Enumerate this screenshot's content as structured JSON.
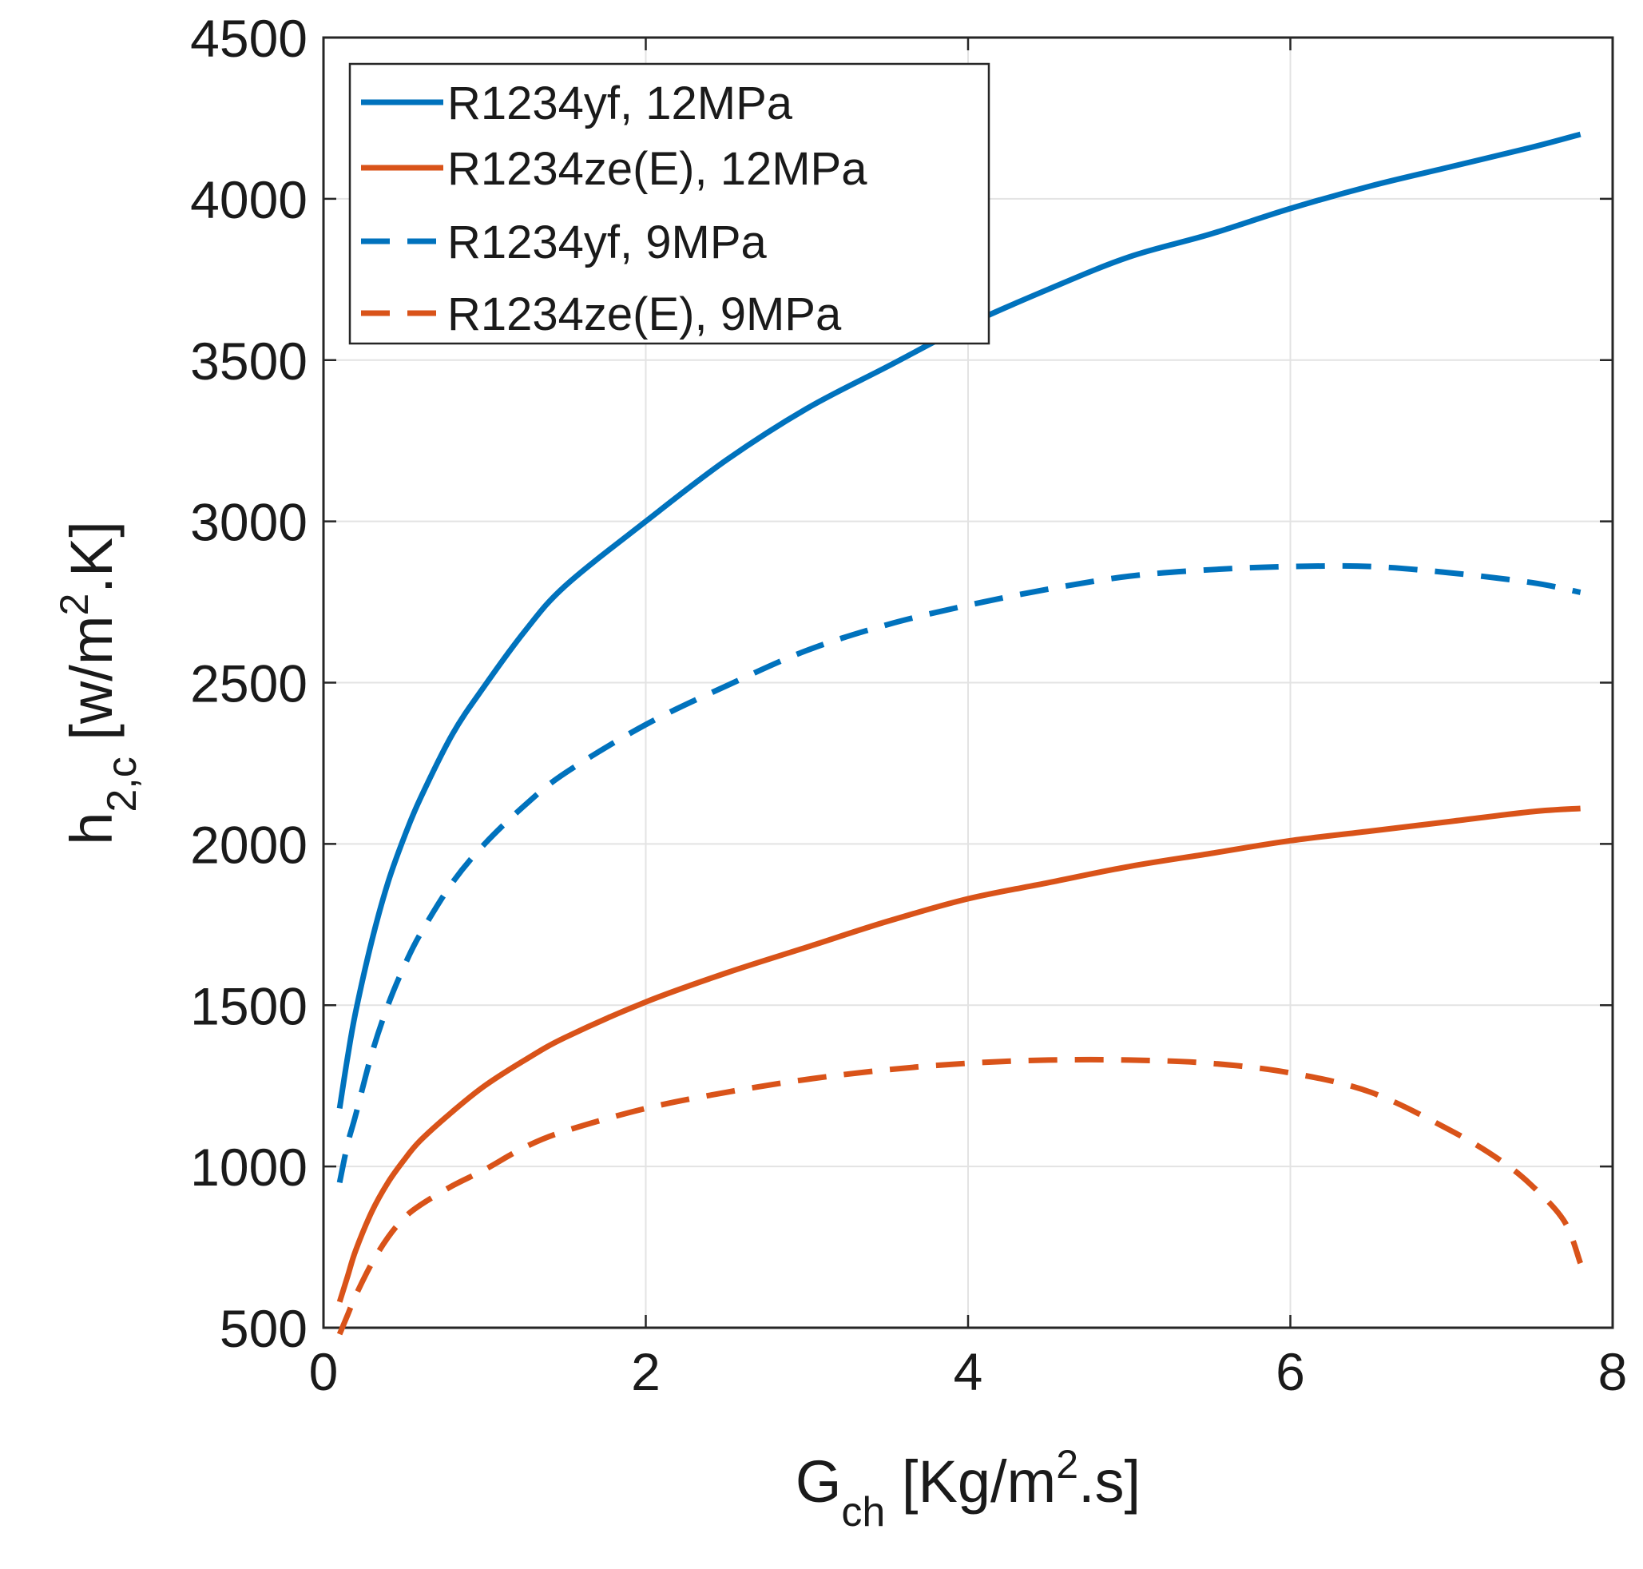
{
  "chart_data": {
    "type": "line",
    "title": "",
    "xlabel": {
      "base": "G",
      "sub": "ch",
      "pre_sup": " [Kg/m",
      "sup": "2",
      "post_sup": ".s]"
    },
    "ylabel": {
      "base": "h",
      "sub": "2,c",
      "pre_sup": " [w/m",
      "sup": "2",
      "post_sup": ".K]"
    },
    "xlim": [
      0,
      8
    ],
    "ylim": [
      500,
      4500
    ],
    "xticks": [
      0,
      2,
      4,
      6,
      8
    ],
    "yticks": [
      500,
      1000,
      1500,
      2000,
      2500,
      3000,
      3500,
      4000,
      4500
    ],
    "grid": true,
    "legend_position": "top-left",
    "series": [
      {
        "name": "R1234yf, 12MPa",
        "color": "#0072BD",
        "style": "solid",
        "x": [
          0.1,
          0.15,
          0.2,
          0.3,
          0.4,
          0.5,
          0.6,
          0.8,
          1.0,
          1.25,
          1.5,
          2.0,
          2.5,
          3.0,
          3.5,
          4.0,
          4.5,
          5.0,
          5.5,
          6.0,
          6.5,
          7.0,
          7.5,
          7.8
        ],
        "values": [
          1180,
          1340,
          1480,
          1700,
          1880,
          2020,
          2140,
          2340,
          2490,
          2660,
          2800,
          3000,
          3190,
          3350,
          3480,
          3610,
          3720,
          3820,
          3890,
          3970,
          4040,
          4100,
          4160,
          4200
        ]
      },
      {
        "name": "R1234ze(E), 12MPa",
        "color": "#D95319",
        "style": "solid",
        "x": [
          0.1,
          0.15,
          0.2,
          0.3,
          0.4,
          0.5,
          0.6,
          0.8,
          1.0,
          1.25,
          1.5,
          2.0,
          2.5,
          3.0,
          3.5,
          4.0,
          4.5,
          5.0,
          5.5,
          6.0,
          6.5,
          7.0,
          7.5,
          7.8
        ],
        "values": [
          580,
          660,
          740,
          860,
          950,
          1020,
          1080,
          1170,
          1250,
          1330,
          1400,
          1510,
          1600,
          1680,
          1760,
          1830,
          1880,
          1930,
          1970,
          2010,
          2040,
          2070,
          2100,
          2110
        ]
      },
      {
        "name": "R1234yf, 9MPa",
        "color": "#0072BD",
        "style": "dashed",
        "x": [
          0.1,
          0.15,
          0.2,
          0.3,
          0.4,
          0.5,
          0.6,
          0.8,
          1.0,
          1.25,
          1.5,
          2.0,
          2.5,
          3.0,
          3.5,
          4.0,
          4.5,
          5.0,
          5.5,
          6.0,
          6.5,
          7.0,
          7.5,
          7.8
        ],
        "values": [
          950,
          1070,
          1160,
          1350,
          1500,
          1620,
          1720,
          1880,
          2000,
          2120,
          2220,
          2370,
          2490,
          2600,
          2680,
          2740,
          2790,
          2830,
          2850,
          2860,
          2860,
          2840,
          2810,
          2780
        ]
      },
      {
        "name": "R1234ze(E), 9MPa",
        "color": "#D95319",
        "style": "dashed",
        "x": [
          0.1,
          0.15,
          0.2,
          0.3,
          0.4,
          0.5,
          0.6,
          0.8,
          1.0,
          1.25,
          1.5,
          2.0,
          2.5,
          3.0,
          3.5,
          4.0,
          4.5,
          5.0,
          5.5,
          6.0,
          6.5,
          7.0,
          7.3,
          7.5,
          7.7,
          7.8
        ],
        "values": [
          480,
          540,
          600,
          700,
          780,
          840,
          880,
          940,
          990,
          1060,
          1110,
          1180,
          1230,
          1270,
          1300,
          1320,
          1330,
          1330,
          1320,
          1290,
          1230,
          1110,
          1020,
          940,
          830,
          700
        ]
      }
    ]
  }
}
